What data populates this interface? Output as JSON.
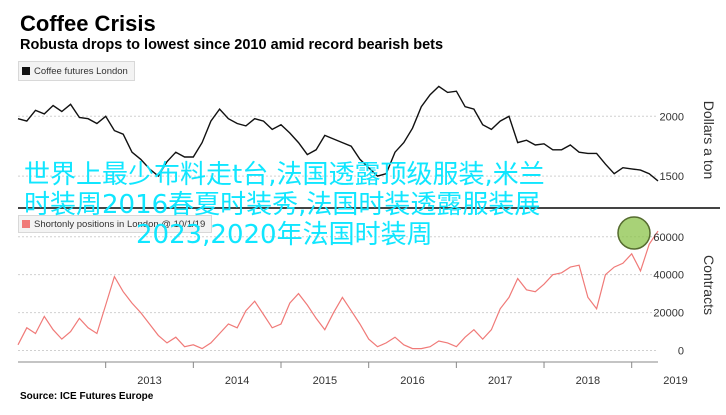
{
  "header": {
    "title": "Coffee Crisis",
    "subtitle": "Robusta drops to lowest since 2010 amid record bearish bets"
  },
  "footer": {
    "source": "Source: ICE Futures Europe"
  },
  "overlay": {
    "line1": "世界上最少布料走t台,法国透露顶级服装,米兰",
    "line2": "时装周2016春夏时装秀,法国时装透露服装展",
    "line3": "2023,2020年法国时装周"
  },
  "colors": {
    "price_line": "#111111",
    "positions_line": "#f07a78",
    "overlay_text": "#10e6ff",
    "highlight_circle": "#7cb342"
  },
  "chart_data": [
    {
      "type": "line",
      "title": "Coffee futures London",
      "ylabel": "Dollars a ton",
      "x_ticks": [
        "2013",
        "2014",
        "2015",
        "2016",
        "2017",
        "2018",
        "2019"
      ],
      "ylim": [
        1250,
        2320
      ],
      "y_ticks": [
        1500,
        2000
      ],
      "series": [
        {
          "name": "Coffee futures London",
          "x": [
            2012.0,
            2012.1,
            2012.2,
            2012.3,
            2012.4,
            2012.5,
            2012.6,
            2012.7,
            2012.8,
            2012.9,
            2013.0,
            2013.1,
            2013.2,
            2013.3,
            2013.4,
            2013.5,
            2013.6,
            2013.7,
            2013.8,
            2013.9,
            2014.0,
            2014.1,
            2014.2,
            2014.3,
            2014.4,
            2014.5,
            2014.6,
            2014.7,
            2014.8,
            2014.9,
            2015.0,
            2015.1,
            2015.2,
            2015.3,
            2015.4,
            2015.5,
            2015.6,
            2015.7,
            2015.8,
            2015.9,
            2016.0,
            2016.1,
            2016.2,
            2016.3,
            2016.4,
            2016.5,
            2016.6,
            2016.7,
            2016.8,
            2016.9,
            2017.0,
            2017.1,
            2017.2,
            2017.3,
            2017.4,
            2017.5,
            2017.6,
            2017.7,
            2017.8,
            2017.9,
            2018.0,
            2018.1,
            2018.2,
            2018.3,
            2018.4,
            2018.5,
            2018.6,
            2018.7,
            2018.8,
            2018.9,
            2019.0,
            2019.1,
            2019.2,
            2019.3
          ],
          "values": [
            1980,
            1960,
            2050,
            2020,
            2090,
            2040,
            2100,
            1990,
            1980,
            1940,
            2000,
            1880,
            1850,
            1700,
            1640,
            1560,
            1500,
            1620,
            1700,
            1660,
            1660,
            1780,
            1960,
            2060,
            1980,
            1940,
            1920,
            1980,
            1960,
            1890,
            1930,
            1860,
            1780,
            1680,
            1720,
            1840,
            1810,
            1780,
            1750,
            1640,
            1570,
            1500,
            1520,
            1700,
            1780,
            1900,
            2080,
            2180,
            2250,
            2200,
            2210,
            2080,
            2060,
            1930,
            1890,
            1960,
            2000,
            1780,
            1800,
            1760,
            1770,
            1720,
            1720,
            1760,
            1700,
            1690,
            1690,
            1600,
            1520,
            1570,
            1560,
            1550,
            1520,
            1460
          ]
        }
      ]
    },
    {
      "type": "line",
      "title": "Shortonly positions in London @ 10/1/19",
      "ylabel": "Contracts",
      "x_ticks": [
        "2013",
        "2014",
        "2015",
        "2016",
        "2017",
        "2018",
        "2019"
      ],
      "ylim": [
        -5000,
        72000
      ],
      "y_ticks": [
        0,
        20000,
        40000,
        60000
      ],
      "series": [
        {
          "name": "Shortonly positions in London @ 10/1/19",
          "x": [
            2012.0,
            2012.1,
            2012.2,
            2012.3,
            2012.4,
            2012.5,
            2012.6,
            2012.7,
            2012.8,
            2012.9,
            2013.0,
            2013.1,
            2013.2,
            2013.3,
            2013.4,
            2013.5,
            2013.6,
            2013.7,
            2013.8,
            2013.9,
            2014.0,
            2014.1,
            2014.2,
            2014.3,
            2014.4,
            2014.5,
            2014.6,
            2014.7,
            2014.8,
            2014.9,
            2015.0,
            2015.1,
            2015.2,
            2015.3,
            2015.4,
            2015.5,
            2015.6,
            2015.7,
            2015.8,
            2015.9,
            2016.0,
            2016.1,
            2016.2,
            2016.3,
            2016.4,
            2016.5,
            2016.6,
            2016.7,
            2016.8,
            2016.9,
            2017.0,
            2017.1,
            2017.2,
            2017.3,
            2017.4,
            2017.5,
            2017.6,
            2017.7,
            2017.8,
            2017.9,
            2018.0,
            2018.1,
            2018.2,
            2018.3,
            2018.4,
            2018.5,
            2018.6,
            2018.7,
            2018.8,
            2018.9,
            2019.0,
            2019.1,
            2019.2,
            2019.3
          ],
          "values": [
            3000,
            12000,
            9000,
            18000,
            11000,
            6000,
            10000,
            17000,
            12000,
            9000,
            24000,
            39000,
            31000,
            25000,
            20000,
            14000,
            8000,
            4000,
            7000,
            2000,
            3000,
            1000,
            4000,
            9000,
            14000,
            12000,
            21000,
            26000,
            19000,
            12000,
            14000,
            25000,
            30000,
            24000,
            17000,
            11000,
            20000,
            28000,
            21000,
            14000,
            6000,
            2000,
            4000,
            7000,
            3000,
            1000,
            1000,
            2000,
            5000,
            4000,
            2000,
            7000,
            11000,
            6000,
            11000,
            22000,
            28000,
            38000,
            32000,
            31000,
            35000,
            40000,
            41000,
            44000,
            45000,
            28000,
            22000,
            40000,
            44000,
            46000,
            51000,
            42000,
            56000,
            63000
          ]
        }
      ]
    }
  ]
}
